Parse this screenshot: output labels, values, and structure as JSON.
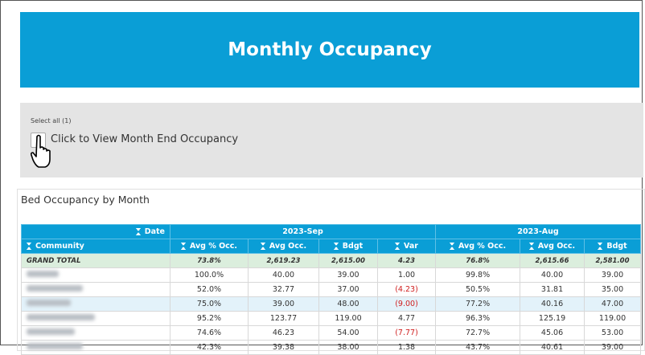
{
  "banner": {
    "title": "Monthly Occupancy"
  },
  "filter": {
    "select_all": "Select all (1)",
    "checkbox_label": "Click to View Month End Occupancy"
  },
  "table": {
    "title": "Bed Occupancy by Month",
    "corner_label": "Date",
    "row_header": "Community",
    "groups": [
      "2023-Sep",
      "2023-Aug"
    ],
    "columns": [
      [
        "Avg % Occ.",
        "Avg Occ.",
        "Bdgt",
        "Var"
      ],
      [
        "Avg % Occ.",
        "Avg Occ.",
        "Bdgt"
      ]
    ],
    "total_label": "GRAND TOTAL",
    "total": [
      "73.8%",
      "2,619.23",
      "2,615.00",
      "4.23",
      "76.8%",
      "2,615.66",
      "2,581.00"
    ],
    "rows": [
      [
        "100.0%",
        "40.00",
        "39.00",
        "1.00",
        "99.8%",
        "40.00",
        "39.00"
      ],
      [
        "52.0%",
        "32.77",
        "37.00",
        "(4.23)",
        "50.5%",
        "31.81",
        "35.00"
      ],
      [
        "75.0%",
        "39.00",
        "48.00",
        "(9.00)",
        "77.2%",
        "40.16",
        "47.00"
      ],
      [
        "95.2%",
        "123.77",
        "119.00",
        "4.77",
        "96.3%",
        "125.19",
        "119.00"
      ],
      [
        "74.6%",
        "46.23",
        "54.00",
        "(7.77)",
        "72.7%",
        "45.06",
        "53.00"
      ],
      [
        "42.3%",
        "39.38",
        "38.00",
        "1.38",
        "43.7%",
        "40.61",
        "39.00"
      ]
    ]
  }
}
